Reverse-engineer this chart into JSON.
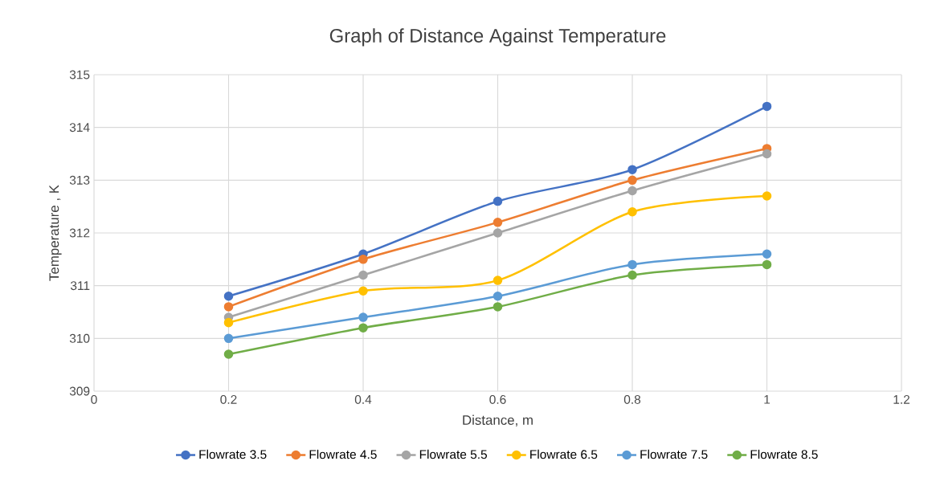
{
  "chart_data": {
    "type": "line",
    "title": "Graph of Distance Against Temperature",
    "xlabel": "Distance, m",
    "ylabel": "Temperature , K",
    "x": [
      0.2,
      0.4,
      0.6,
      0.8,
      1
    ],
    "series": [
      {
        "name": "Flowrate 3.5",
        "color": "#4472c4",
        "values": [
          310.8,
          311.6,
          312.6,
          313.2,
          314.4
        ]
      },
      {
        "name": "Flowrate 4.5",
        "color": "#ed7d31",
        "values": [
          310.6,
          311.5,
          312.2,
          313.0,
          313.6
        ]
      },
      {
        "name": "Flowrate 5.5",
        "color": "#a5a5a5",
        "values": [
          310.4,
          311.2,
          312.0,
          312.8,
          313.5
        ]
      },
      {
        "name": "Flowrate 6.5",
        "color": "#ffc000",
        "values": [
          310.3,
          310.9,
          311.1,
          312.4,
          312.7
        ]
      },
      {
        "name": "Flowrate 7.5",
        "color": "#5b9bd5",
        "values": [
          310.0,
          310.4,
          310.8,
          311.4,
          311.6
        ]
      },
      {
        "name": "Flowrate 8.5",
        "color": "#70ad47",
        "values": [
          309.7,
          310.2,
          310.6,
          311.2,
          311.4
        ]
      }
    ],
    "xlim": [
      0,
      1.2
    ],
    "xticks": [
      0,
      0.2,
      0.4,
      0.6,
      0.8,
      1,
      1.2
    ],
    "ylim": [
      309,
      315
    ],
    "yticks": [
      309,
      310,
      311,
      312,
      313,
      314,
      315
    ],
    "grid": true,
    "legend": "bottom",
    "marker": "circle",
    "line_style": "solid"
  }
}
